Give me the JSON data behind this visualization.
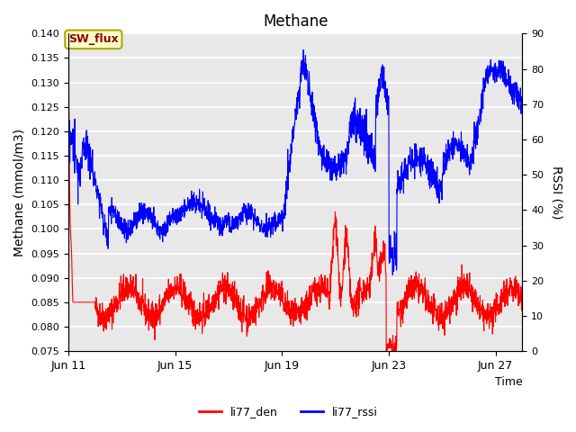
{
  "title": "Methane",
  "xlabel": "Time",
  "ylabel_left": "Methane (mmol/m3)",
  "ylabel_right": "RSSI (%)",
  "ylim_left": [
    0.075,
    0.14
  ],
  "ylim_right": [
    0,
    90
  ],
  "yticks_left": [
    0.075,
    0.08,
    0.085,
    0.09,
    0.095,
    0.1,
    0.105,
    0.11,
    0.115,
    0.12,
    0.125,
    0.13,
    0.135,
    0.14
  ],
  "yticks_right": [
    0,
    10,
    20,
    30,
    40,
    50,
    60,
    70,
    80,
    90
  ],
  "xtick_labels": [
    "Jun 11",
    "Jun 15",
    "Jun 19",
    "Jun 23",
    "Jun 27"
  ],
  "xtick_positions": [
    0,
    4,
    8,
    12,
    16
  ],
  "legend_labels": [
    "li77_den",
    "li77_rssi"
  ],
  "legend_colors": [
    "red",
    "blue"
  ],
  "sw_flux_label": "SW_flux",
  "bg_color": "#e8e8e8",
  "grid_color": "white",
  "annotation_box_color": "#ffffcc",
  "annotation_box_edge": "#aaaa00",
  "annotation_text_color": "#8b0000"
}
